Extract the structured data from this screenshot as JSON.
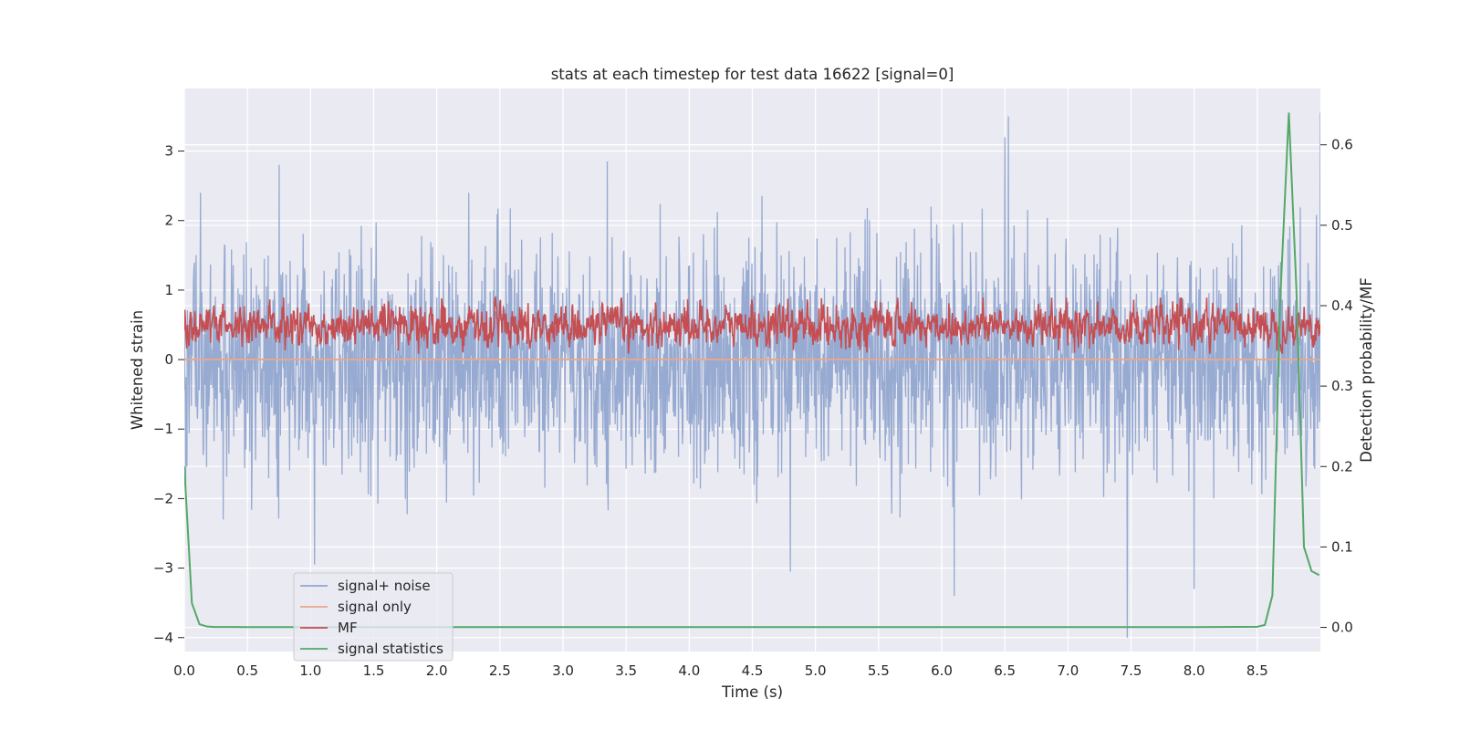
{
  "chart_data": {
    "type": "line",
    "title": "stats at each timestep for test data 16622 [signal=0]",
    "xlabel": "Time (s)",
    "ylabel": "Whitened strain",
    "y2label": "Detection probability/MF",
    "xlim": [
      0.0,
      9.0
    ],
    "ylim": [
      -4.2,
      3.9
    ],
    "y2lim": [
      -0.03,
      0.67
    ],
    "x_ticks": [
      0.0,
      0.5,
      1.0,
      1.5,
      2.0,
      2.5,
      3.0,
      3.5,
      4.0,
      4.5,
      5.0,
      5.5,
      6.0,
      6.5,
      7.0,
      7.5,
      8.0,
      8.5
    ],
    "x_tick_labels": [
      "0.0",
      "0.5",
      "1.0",
      "1.5",
      "2.0",
      "2.5",
      "3.0",
      "3.5",
      "4.0",
      "4.5",
      "5.0",
      "5.5",
      "6.0",
      "6.5",
      "7.0",
      "7.5",
      "8.0",
      "8.5"
    ],
    "y_ticks": [
      -4,
      -3,
      -2,
      -1,
      0,
      1,
      2,
      3
    ],
    "y_tick_labels": [
      "−4",
      "−3",
      "−2",
      "−1",
      "0",
      "1",
      "2",
      "3"
    ],
    "y2_ticks": [
      0.0,
      0.1,
      0.2,
      0.3,
      0.4,
      0.5,
      0.6
    ],
    "y2_tick_labels": [
      "0.0",
      "0.1",
      "0.2",
      "0.3",
      "0.4",
      "0.5",
      "0.6"
    ],
    "grid": true,
    "legend_position": "lower-left",
    "series": [
      {
        "name": "signal+ noise",
        "color": "#92a6cf",
        "axis": "left",
        "description": "noise waveform, roughly between -2.5 and 2.5",
        "envelope": {
          "mean": 0.0,
          "high": 3.5,
          "low": -4.0
        },
        "peaks": [
          {
            "x": 0.75,
            "y": 2.8
          },
          {
            "x": 1.03,
            "y": -2.95
          },
          {
            "x": 3.35,
            "y": 2.85
          },
          {
            "x": 4.8,
            "y": -3.05
          },
          {
            "x": 6.1,
            "y": -3.4
          },
          {
            "x": 6.5,
            "y": 3.2
          },
          {
            "x": 6.53,
            "y": 3.5
          },
          {
            "x": 7.47,
            "y": -4.0
          },
          {
            "x": 8.0,
            "y": -3.3
          },
          {
            "x": 9.0,
            "y": 3.55
          }
        ]
      },
      {
        "name": "signal only",
        "color": "#e8a78a",
        "axis": "left",
        "x": [
          0.0,
          9.0
        ],
        "y": [
          0.0,
          0.0
        ]
      },
      {
        "name": "MF",
        "color": "#c44e52",
        "axis": "right",
        "description": "matched-filter output fluctuating between about 0.34 and 0.41",
        "envelope": {
          "low": 0.34,
          "high": 0.41
        }
      },
      {
        "name": "signal statistics",
        "color": "#55a868",
        "axis": "right",
        "x": [
          0.0,
          0.06,
          0.12,
          0.18,
          0.24,
          0.5,
          1.0,
          2.0,
          3.0,
          4.0,
          5.0,
          6.0,
          7.0,
          8.0,
          8.5,
          8.56,
          8.62,
          8.68,
          8.75,
          8.81,
          8.87,
          8.93,
          8.99
        ],
        "y": [
          0.2,
          0.03,
          0.004,
          0.001,
          0.0005,
          0.0004,
          0.0003,
          0.0003,
          0.0003,
          0.0003,
          0.0003,
          0.0003,
          0.0003,
          0.0003,
          0.0008,
          0.003,
          0.04,
          0.4,
          0.64,
          0.42,
          0.1,
          0.07,
          0.065
        ]
      }
    ]
  }
}
